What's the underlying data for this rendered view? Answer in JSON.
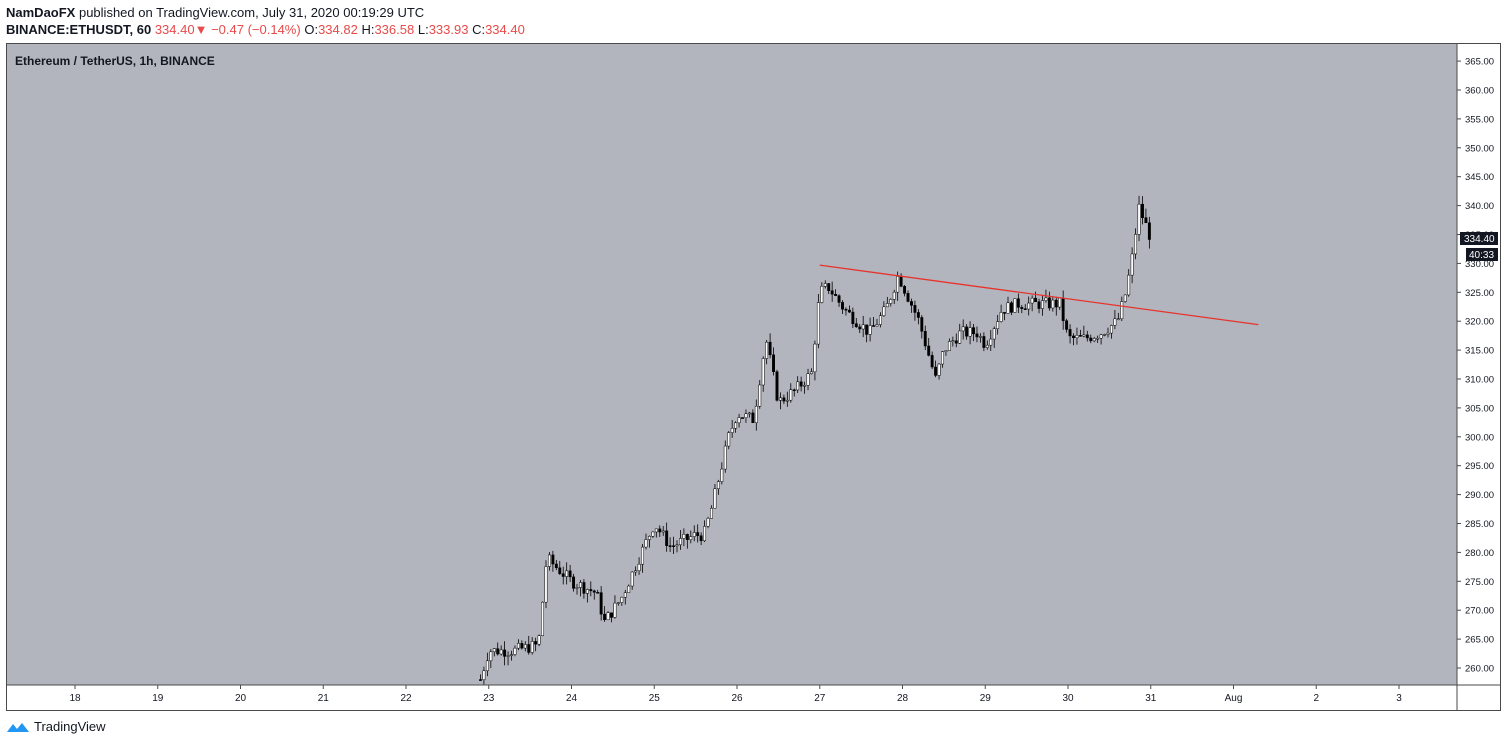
{
  "header": {
    "author": "NamDaoFX",
    "published": " published on TradingView.com, July 31, 2020 00:19:29 UTC",
    "symbol": "BINANCE:ETHUSDT, 60",
    "last": "334.40",
    "arrow": "▼",
    "change": "−0.47 (−0.14%)",
    "o_label": "O:",
    "o_val": "334.82",
    "h_label": "H:",
    "h_val": "336.58",
    "l_label": "L:",
    "l_val": "333.93",
    "c_label": "C:",
    "c_val": "334.40"
  },
  "chart_data": {
    "type": "candlestick",
    "title": "Ethereum / TetherUS, 1h, BINANCE",
    "y_ticks": [
      "260.00",
      "265.00",
      "270.00",
      "275.00",
      "280.00",
      "285.00",
      "290.00",
      "295.00",
      "300.00",
      "305.00",
      "310.00",
      "315.00",
      "320.00",
      "325.00",
      "330.00",
      "335.00",
      "340.00",
      "345.00",
      "350.00",
      "355.00",
      "360.00",
      "365.00"
    ],
    "ylim": [
      256.7,
      367.4
    ],
    "x_ticks": [
      "18",
      "19",
      "20",
      "21",
      "22",
      "23",
      "24",
      "25",
      "26",
      "27",
      "28",
      "29",
      "30",
      "31",
      "Aug",
      "2",
      "3"
    ],
    "last_price_label": "334.40",
    "countdown_label": "40:33",
    "path_days": [
      22.9,
      23.0,
      23.3,
      23.6,
      23.7,
      24.0,
      24.3,
      24.4,
      24.6,
      25.0,
      25.2,
      25.5,
      25.6,
      25.7,
      25.9,
      26.0,
      26.2,
      26.35,
      26.5,
      26.7,
      26.9,
      27.0,
      27.1,
      27.3,
      27.6,
      27.8,
      27.95,
      28.2,
      28.4,
      28.5,
      28.7,
      28.9,
      29.0,
      29.2,
      29.4,
      29.6,
      29.9,
      30.0,
      30.2,
      30.4,
      30.6,
      30.7,
      30.8,
      30.85,
      31.0
    ],
    "path_prices": [
      258,
      263,
      263,
      264,
      279,
      275,
      273,
      268,
      272,
      285,
      281,
      283,
      283,
      288,
      300,
      304,
      303,
      317,
      306,
      308,
      311,
      325,
      326,
      322,
      318,
      322,
      328,
      320,
      310,
      315,
      318,
      318,
      316,
      322,
      323,
      323,
      323,
      317,
      317,
      318,
      320,
      325,
      333,
      340,
      334.4
    ],
    "trendline": {
      "start": {
        "day": 27.0,
        "price": 329.7
      },
      "end": {
        "day": 32.3,
        "price": 319.4
      },
      "color": "#e8332c"
    },
    "background": "#b2b5be"
  },
  "footer": {
    "brand": "TradingView"
  }
}
